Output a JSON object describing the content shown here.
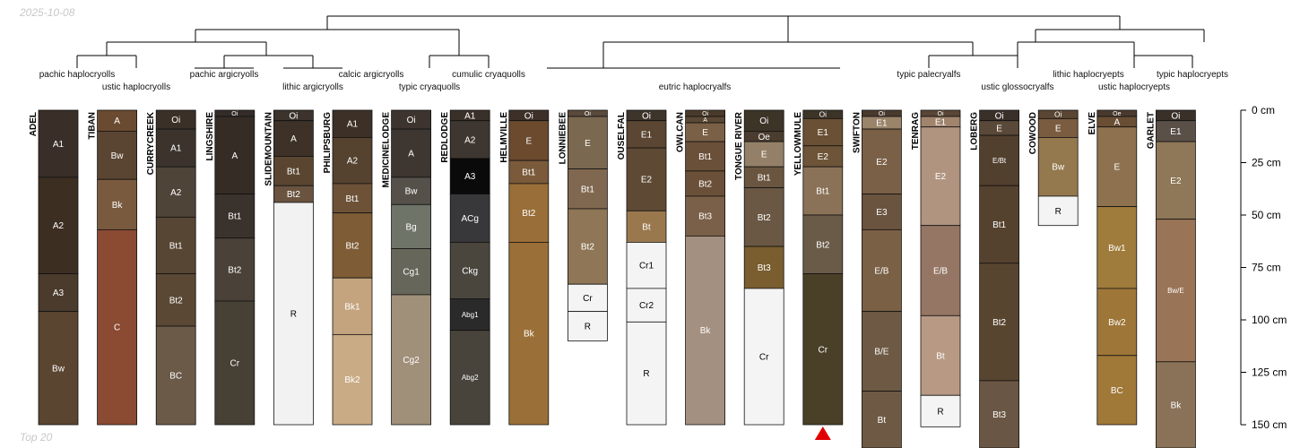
{
  "header": {
    "date": "2025-10-08"
  },
  "footer": {
    "caption": "Top 20"
  },
  "depth_axis": {
    "max_cm": 150,
    "ticks": [
      "0 cm",
      "25 cm",
      "50 cm",
      "75 cm",
      "100 cm",
      "125 cm",
      "150 cm"
    ]
  },
  "taxa": [
    {
      "text": "pachic haplocryolls"
    },
    {
      "text": "ustic haplocryolls"
    },
    {
      "text": "pachic argicryolls"
    },
    {
      "text": "calcic argicryolls"
    },
    {
      "text": "lithic argicryolls"
    },
    {
      "text": "cumulic cryaquolls"
    },
    {
      "text": "typic cryaquolls"
    },
    {
      "text": "eutric haplocryalfs"
    },
    {
      "text": "typic palecryalfs"
    },
    {
      "text": "ustic glossocryalfs"
    },
    {
      "text": "lithic haplocryepts"
    },
    {
      "text": "ustic haplocryepts"
    },
    {
      "text": "typic haplocryepts"
    }
  ],
  "marker": {
    "profile": "YELLOWMULE",
    "color": "#e00000"
  },
  "profiles": [
    {
      "name": "ADEL",
      "horizons": [
        {
          "name": "A1",
          "top": 0,
          "bottom": 32,
          "color": "#3a2f28"
        },
        {
          "name": "A2",
          "top": 32,
          "bottom": 78,
          "color": "#3d2e22"
        },
        {
          "name": "A3",
          "top": 78,
          "bottom": 96,
          "color": "#4a3b2c"
        },
        {
          "name": "Bw",
          "top": 96,
          "bottom": 150,
          "color": "#5a4530"
        }
      ]
    },
    {
      "name": "TIBAN",
      "horizons": [
        {
          "name": "A",
          "top": 0,
          "bottom": 10,
          "color": "#6a4a30"
        },
        {
          "name": "Bw",
          "top": 10,
          "bottom": 33,
          "color": "#5a4532"
        },
        {
          "name": "Bk",
          "top": 33,
          "bottom": 57,
          "color": "#7a5a3e"
        },
        {
          "name": "C",
          "top": 57,
          "bottom": 150,
          "color": "#8b4a32"
        }
      ]
    },
    {
      "name": "CURRYCREEK",
      "horizons": [
        {
          "name": "Oi",
          "top": 0,
          "bottom": 9,
          "color": "#3a3028"
        },
        {
          "name": "A1",
          "top": 9,
          "bottom": 27,
          "color": "#3c342c"
        },
        {
          "name": "A2",
          "top": 27,
          "bottom": 51,
          "color": "#4e4438"
        },
        {
          "name": "Bt1",
          "top": 51,
          "bottom": 78,
          "color": "#574634"
        },
        {
          "name": "Bt2",
          "top": 78,
          "bottom": 103,
          "color": "#5a4834"
        },
        {
          "name": "BC",
          "top": 103,
          "bottom": 150,
          "color": "#6b5a48"
        }
      ]
    },
    {
      "name": "LINGSHIRE",
      "horizons": [
        {
          "name": "Oi",
          "top": 0,
          "bottom": 3,
          "color": "#342c28"
        },
        {
          "name": "A",
          "top": 3,
          "bottom": 40,
          "color": "#352c26"
        },
        {
          "name": "Bt1",
          "top": 40,
          "bottom": 61,
          "color": "#3a322c"
        },
        {
          "name": "Bt2",
          "top": 61,
          "bottom": 91,
          "color": "#4a4238"
        },
        {
          "name": "Cr",
          "top": 91,
          "bottom": 150,
          "color": "#474035"
        }
      ]
    },
    {
      "name": "SLIDEMOUNTAIN",
      "horizons": [
        {
          "name": "Oi",
          "top": 0,
          "bottom": 5,
          "color": "#3c342c"
        },
        {
          "name": "A",
          "top": 5,
          "bottom": 22,
          "color": "#3e3228"
        },
        {
          "name": "Bt1",
          "top": 22,
          "bottom": 36,
          "color": "#5a4630"
        },
        {
          "name": "Bt2",
          "top": 36,
          "bottom": 44,
          "color": "#6a5440"
        },
        {
          "name": "R",
          "top": 44,
          "bottom": 150,
          "color": "#f2f2f2"
        }
      ]
    },
    {
      "name": "PHILIPSBURG",
      "horizons": [
        {
          "name": "A1",
          "top": 0,
          "bottom": 13,
          "color": "#3d3026"
        },
        {
          "name": "A2",
          "top": 13,
          "bottom": 35,
          "color": "#55432f"
        },
        {
          "name": "Bt1",
          "top": 35,
          "bottom": 49,
          "color": "#6d5238"
        },
        {
          "name": "Bt2",
          "top": 49,
          "bottom": 80,
          "color": "#7e5c36"
        },
        {
          "name": "Bk1",
          "top": 80,
          "bottom": 107,
          "color": "#c4a47e"
        },
        {
          "name": "Bk2",
          "top": 107,
          "bottom": 150,
          "color": "#c9ab86"
        }
      ]
    },
    {
      "name": "MEDICINELODGE",
      "horizons": [
        {
          "name": "Oi",
          "top": 0,
          "bottom": 9,
          "color": "#3d3430"
        },
        {
          "name": "A",
          "top": 9,
          "bottom": 32,
          "color": "#3e3630"
        },
        {
          "name": "Bw",
          "top": 32,
          "bottom": 45,
          "color": "#55504a"
        },
        {
          "name": "Bg",
          "top": 45,
          "bottom": 66,
          "color": "#6e7468"
        },
        {
          "name": "Cg1",
          "top": 66,
          "bottom": 88,
          "color": "#66665a"
        },
        {
          "name": "Cg2",
          "top": 88,
          "bottom": 150,
          "color": "#a0907a"
        }
      ]
    },
    {
      "name": "REDLODGE",
      "horizons": [
        {
          "name": "A1",
          "top": 0,
          "bottom": 5,
          "color": "#3a302a"
        },
        {
          "name": "A2",
          "top": 5,
          "bottom": 23,
          "color": "#3e3630"
        },
        {
          "name": "A3",
          "top": 23,
          "bottom": 40,
          "color": "#0a0a0a"
        },
        {
          "name": "ACg",
          "top": 40,
          "bottom": 63,
          "color": "#38383a"
        },
        {
          "name": "Ckg",
          "top": 63,
          "bottom": 90,
          "color": "#4a463e"
        },
        {
          "name": "Abg1",
          "top": 90,
          "bottom": 105,
          "color": "#2a2a2a"
        },
        {
          "name": "Abg2",
          "top": 105,
          "bottom": 150,
          "color": "#48443c"
        }
      ]
    },
    {
      "name": "HELMVILLE",
      "horizons": [
        {
          "name": "Oi",
          "top": 0,
          "bottom": 5,
          "color": "#3d3028"
        },
        {
          "name": "E",
          "top": 5,
          "bottom": 24,
          "color": "#6b4a2e"
        },
        {
          "name": "Bt1",
          "top": 24,
          "bottom": 35,
          "color": "#7a5a3a"
        },
        {
          "name": "Bt2",
          "top": 35,
          "bottom": 63,
          "color": "#9a6e38"
        },
        {
          "name": "Bk",
          "top": 63,
          "bottom": 150,
          "color": "#9a7038"
        }
      ]
    },
    {
      "name": "LONNIEBEE",
      "horizons": [
        {
          "name": "Oi",
          "top": 0,
          "bottom": 3,
          "color": "#5a4a3c"
        },
        {
          "name": "E",
          "top": 3,
          "bottom": 28,
          "color": "#7a6850"
        },
        {
          "name": "Bt1",
          "top": 28,
          "bottom": 47,
          "color": "#806850"
        },
        {
          "name": "Bt2",
          "top": 47,
          "bottom": 83,
          "color": "#8e7656"
        },
        {
          "name": "Cr",
          "top": 83,
          "bottom": 96,
          "color": "#f4f4f4"
        },
        {
          "name": "R",
          "top": 96,
          "bottom": 110,
          "color": "#f4f4f4"
        }
      ]
    },
    {
      "name": "OUSELFAL",
      "horizons": [
        {
          "name": "Oi",
          "top": 0,
          "bottom": 5,
          "color": "#3d342c"
        },
        {
          "name": "E1",
          "top": 5,
          "bottom": 18,
          "color": "#5a4632"
        },
        {
          "name": "E2",
          "top": 18,
          "bottom": 48,
          "color": "#5e4a34"
        },
        {
          "name": "Bt",
          "top": 48,
          "bottom": 63,
          "color": "#9a784e"
        },
        {
          "name": "Cr1",
          "top": 63,
          "bottom": 85,
          "color": "#f4f4f4"
        },
        {
          "name": "Cr2",
          "top": 85,
          "bottom": 101,
          "color": "#f4f4f4"
        },
        {
          "name": "R",
          "top": 101,
          "bottom": 150,
          "color": "#f4f4f4"
        }
      ]
    },
    {
      "name": "OWLCAN",
      "horizons": [
        {
          "name": "Oi",
          "top": 0,
          "bottom": 3,
          "color": "#4a3a2c"
        },
        {
          "name": "A",
          "top": 3,
          "bottom": 6,
          "color": "#5a4834"
        },
        {
          "name": "E",
          "top": 6,
          "bottom": 15,
          "color": "#7a6046"
        },
        {
          "name": "Bt1",
          "top": 15,
          "bottom": 29,
          "color": "#6a5038"
        },
        {
          "name": "Bt2",
          "top": 29,
          "bottom": 41,
          "color": "#6a5038"
        },
        {
          "name": "Bt3",
          "top": 41,
          "bottom": 60,
          "color": "#7a6048"
        },
        {
          "name": "Bk",
          "top": 60,
          "bottom": 150,
          "color": "#a49080"
        }
      ]
    },
    {
      "name": "TONGUE RIVER",
      "horizons": [
        {
          "name": "Oi",
          "top": 0,
          "bottom": 10,
          "color": "#3d3428"
        },
        {
          "name": "Oe",
          "top": 10,
          "bottom": 15,
          "color": "#4a3c2e"
        },
        {
          "name": "E",
          "top": 15,
          "bottom": 27,
          "color": "#948068"
        },
        {
          "name": "Bt1",
          "top": 27,
          "bottom": 37,
          "color": "#6a5640"
        },
        {
          "name": "Bt2",
          "top": 37,
          "bottom": 65,
          "color": "#6a5844"
        },
        {
          "name": "Bt3",
          "top": 65,
          "bottom": 85,
          "color": "#7a5e30"
        },
        {
          "name": "Cr",
          "top": 85,
          "bottom": 150,
          "color": "#f4f4f4"
        }
      ]
    },
    {
      "name": "YELLOWMULE",
      "horizons": [
        {
          "name": "Oi",
          "top": 0,
          "bottom": 4,
          "color": "#3d3428"
        },
        {
          "name": "E1",
          "top": 4,
          "bottom": 17,
          "color": "#6a5034"
        },
        {
          "name": "E2",
          "top": 17,
          "bottom": 27,
          "color": "#6e5438"
        },
        {
          "name": "Bt1",
          "top": 27,
          "bottom": 50,
          "color": "#8a7258"
        },
        {
          "name": "Bt2",
          "top": 50,
          "bottom": 78,
          "color": "#6a5a48"
        },
        {
          "name": "Cr",
          "top": 78,
          "bottom": 150,
          "color": "#4a4028"
        }
      ]
    },
    {
      "name": "SWIFTON",
      "horizons": [
        {
          "name": "Oi",
          "top": 0,
          "bottom": 3,
          "color": "#4a3a2e"
        },
        {
          "name": "E1",
          "top": 3,
          "bottom": 9,
          "color": "#9a846a"
        },
        {
          "name": "E2",
          "top": 9,
          "bottom": 40,
          "color": "#7a6046"
        },
        {
          "name": "E3",
          "top": 40,
          "bottom": 57,
          "color": "#6a5440"
        },
        {
          "name": "E/B",
          "top": 57,
          "bottom": 96,
          "color": "#7a6044"
        },
        {
          "name": "B/E",
          "top": 96,
          "bottom": 134,
          "color": "#6e5a44"
        },
        {
          "name": "Bt",
          "top": 134,
          "bottom": 165,
          "color": "#6e5a44"
        }
      ]
    },
    {
      "name": "TENRAG",
      "horizons": [
        {
          "name": "Oi",
          "top": 0,
          "bottom": 3,
          "color": "#5a4636"
        },
        {
          "name": "E1",
          "top": 3,
          "bottom": 8,
          "color": "#a0846c"
        },
        {
          "name": "E2",
          "top": 8,
          "bottom": 55,
          "color": "#b09480"
        },
        {
          "name": "E/B",
          "top": 55,
          "bottom": 98,
          "color": "#957664"
        },
        {
          "name": "Bt",
          "top": 98,
          "bottom": 136,
          "color": "#b89a84"
        },
        {
          "name": "R",
          "top": 136,
          "bottom": 151,
          "color": "#f4f4f4"
        }
      ]
    },
    {
      "name": "LOBERG",
      "horizons": [
        {
          "name": "Oi",
          "top": 0,
          "bottom": 5,
          "color": "#3a302a"
        },
        {
          "name": "E",
          "top": 5,
          "bottom": 12,
          "color": "#5a4838"
        },
        {
          "name": "E/Bt",
          "top": 12,
          "bottom": 36,
          "color": "#52402e"
        },
        {
          "name": "Bt1",
          "top": 36,
          "bottom": 73,
          "color": "#55422e"
        },
        {
          "name": "Bt2",
          "top": 73,
          "bottom": 129,
          "color": "#584530"
        },
        {
          "name": "Bt3",
          "top": 129,
          "bottom": 165,
          "color": "#6a5644"
        }
      ]
    },
    {
      "name": "COWOOD",
      "horizons": [
        {
          "name": "Oi",
          "top": 0,
          "bottom": 4,
          "color": "#5a4632"
        },
        {
          "name": "E",
          "top": 4,
          "bottom": 13,
          "color": "#7a5c40"
        },
        {
          "name": "Bw",
          "top": 13,
          "bottom": 41,
          "color": "#94784e"
        },
        {
          "name": "R",
          "top": 41,
          "bottom": 55,
          "color": "#f4f4f4"
        }
      ]
    },
    {
      "name": "ELVE",
      "horizons": [
        {
          "name": "Oe",
          "top": 0,
          "bottom": 3,
          "color": "#4a3a2e"
        },
        {
          "name": "A",
          "top": 3,
          "bottom": 8,
          "color": "#6a4e34"
        },
        {
          "name": "E",
          "top": 8,
          "bottom": 46,
          "color": "#8e7250"
        },
        {
          "name": "Bw1",
          "top": 46,
          "bottom": 85,
          "color": "#a07c3c"
        },
        {
          "name": "Bw2",
          "top": 85,
          "bottom": 117,
          "color": "#9e7638"
        },
        {
          "name": "BC",
          "top": 117,
          "bottom": 150,
          "color": "#a07838"
        }
      ]
    },
    {
      "name": "GARLET",
      "horizons": [
        {
          "name": "Oi",
          "top": 0,
          "bottom": 5,
          "color": "#3a302a"
        },
        {
          "name": "E1",
          "top": 5,
          "bottom": 15,
          "color": "#5a5048"
        },
        {
          "name": "E2",
          "top": 15,
          "bottom": 52,
          "color": "#8e7858"
        },
        {
          "name": "Bw/E",
          "top": 52,
          "bottom": 120,
          "color": "#9a7456"
        },
        {
          "name": "Bk",
          "top": 120,
          "bottom": 165,
          "color": "#8a7258"
        }
      ]
    }
  ]
}
